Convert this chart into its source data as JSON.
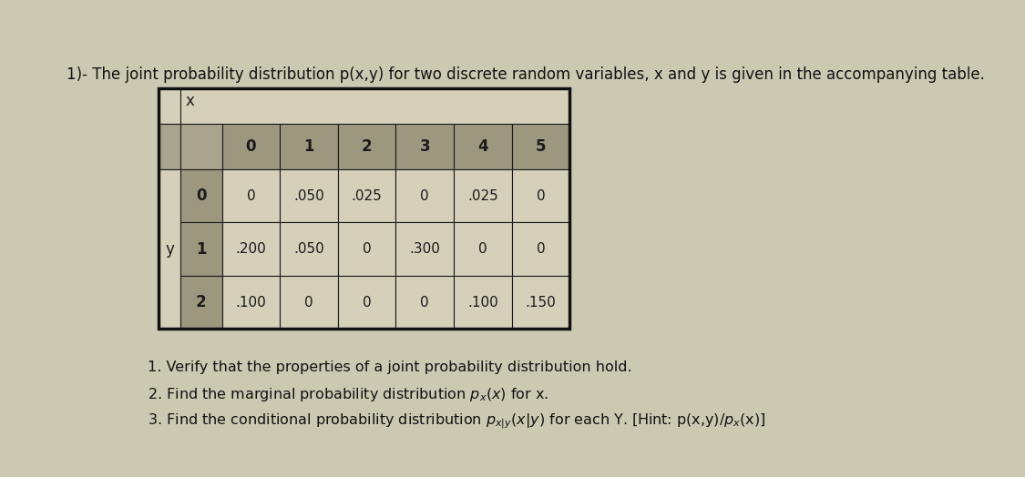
{
  "title": "1)- The joint probability distribution p(x,y) for two discrete random variables, x and y is given in the accompanying table.",
  "title_fontsize": 12,
  "background_color": "#ccc9b2",
  "cell_dark": "#a8a48e",
  "cell_light": "#d4d0ba",
  "cell_header_num": "#9c9880",
  "border_color": "#1a1a1a",
  "x_label": "x",
  "y_label": "y",
  "x_values": [
    "0",
    "1",
    "2",
    "3",
    "4",
    "5"
  ],
  "y_values": [
    "0",
    "1",
    "2"
  ],
  "table_data": [
    [
      "0",
      ".050",
      ".025",
      "0",
      ".025",
      "0"
    ],
    [
      ".200",
      ".050",
      "0",
      ".300",
      "0",
      "0"
    ],
    [
      ".100",
      "0",
      "0",
      "0",
      ".100",
      ".150"
    ]
  ],
  "footer_lines": [
    "1. Verify that the properties of a joint probability distribution hold.",
    "2. Find the marginal probability distribution px(x) for x.",
    "3. Find the conditional probability distribution px|y(x|y) for each Y. [Hint: p(x,y)/px(x)]"
  ],
  "footer_fontsize": 11.5
}
